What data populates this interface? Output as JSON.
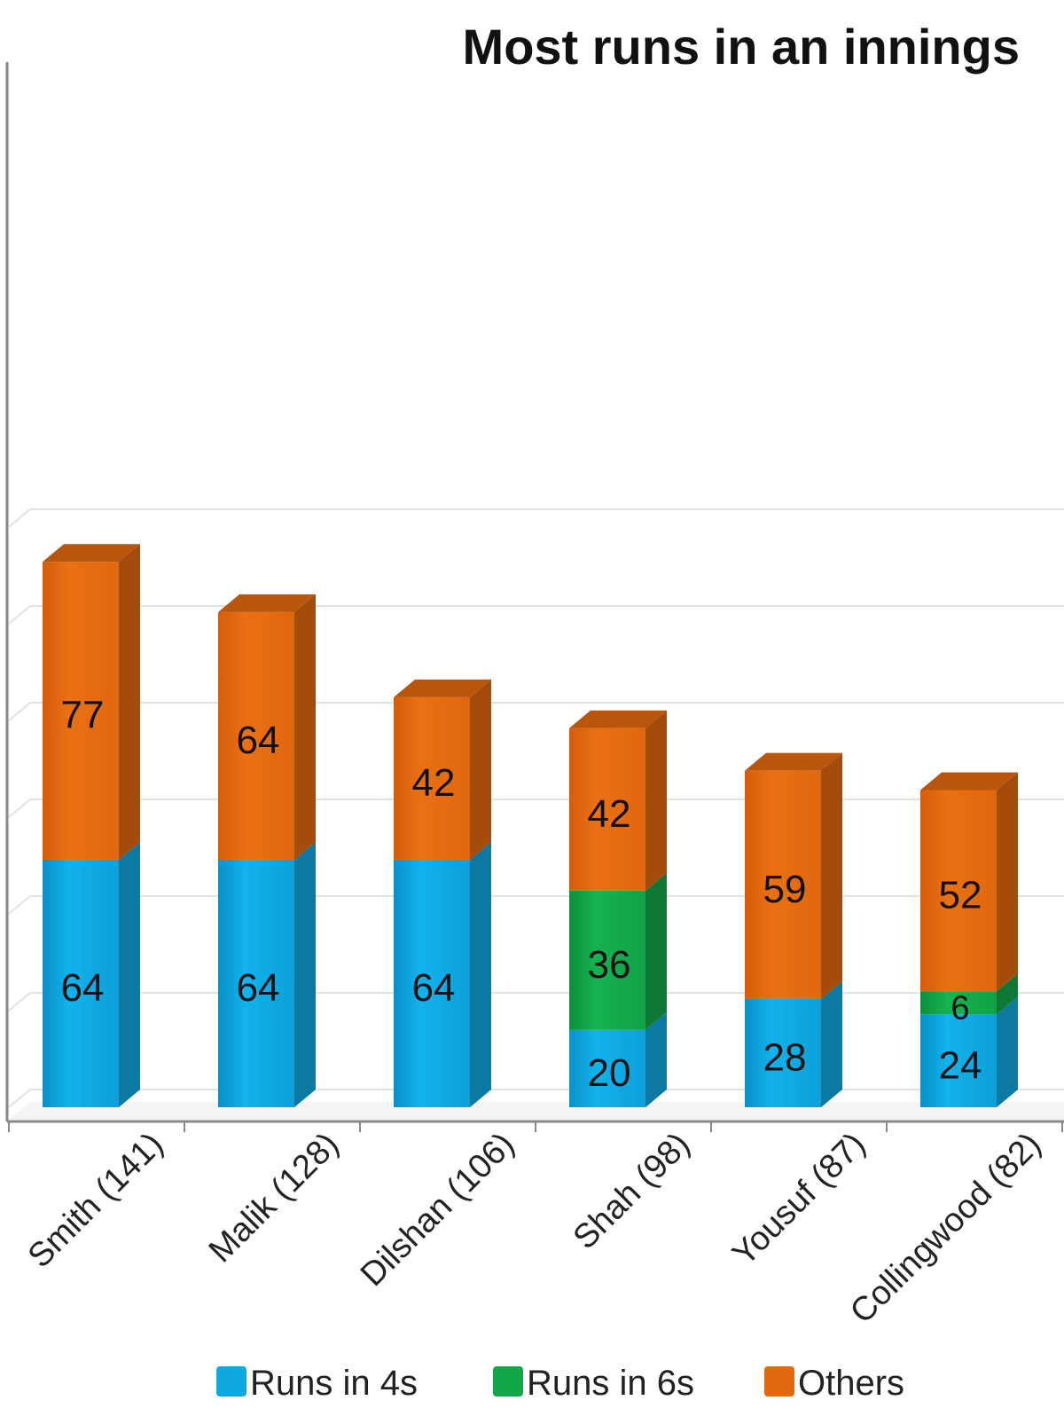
{
  "chart_data": {
    "type": "bar",
    "stacked": true,
    "three_d": true,
    "title": "Most runs in an innings",
    "categories": [
      "Smith (141)",
      "Malik (128)",
      "Dilshan (106)",
      "Shah (98)",
      "Yousuf (87)",
      "Collingwood (82)"
    ],
    "series": [
      {
        "name": "Runs in 4s",
        "color": "#0fa8e0",
        "values": [
          64,
          64,
          64,
          20,
          28,
          24
        ]
      },
      {
        "name": "Runs in 6s",
        "color": "#12a84a",
        "values": [
          0,
          0,
          0,
          36,
          0,
          6
        ]
      },
      {
        "name": "Others",
        "color": "#e3690f",
        "values": [
          77,
          64,
          42,
          42,
          59,
          52
        ]
      }
    ],
    "ylim": [
      0,
      150
    ],
    "grid": true,
    "legend_position": "bottom",
    "data_labels": true
  }
}
